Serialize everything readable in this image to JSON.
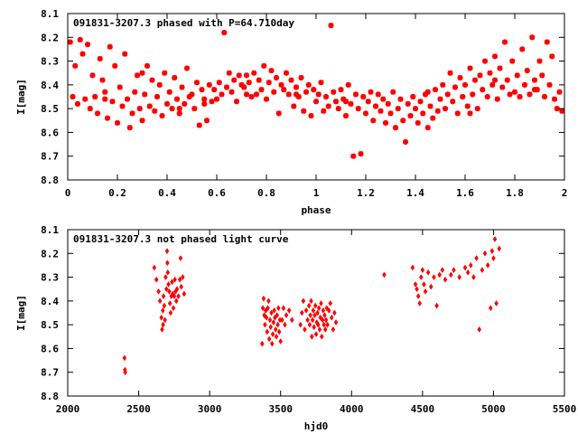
{
  "chart_data": [
    {
      "type": "scatter",
      "title": "091831-3207.3 phased with P=64.710day",
      "xlabel": "phase",
      "ylabel": "I[mag]",
      "xlim": [
        0,
        2
      ],
      "ylim": [
        8.8,
        8.1
      ],
      "y_inverted": true,
      "xticks": [
        "0",
        "0.2",
        "0.4",
        "0.6",
        "0.8",
        "1",
        "1.2",
        "1.4",
        "1.6",
        "1.8",
        "2"
      ],
      "yticks": [
        "8.1",
        "8.2",
        "8.3",
        "8.4",
        "8.5",
        "8.6",
        "8.7",
        "8.8"
      ],
      "marker": "star",
      "color": "#ff0000",
      "points": [
        [
          0.01,
          8.22
        ],
        [
          0.02,
          8.45
        ],
        [
          0.03,
          8.32
        ],
        [
          0.04,
          8.48
        ],
        [
          0.05,
          8.21
        ],
        [
          0.06,
          8.27
        ],
        [
          0.07,
          8.46
        ],
        [
          0.08,
          8.23
        ],
        [
          0.09,
          8.5
        ],
        [
          0.1,
          8.36
        ],
        [
          0.11,
          8.45
        ],
        [
          0.12,
          8.52
        ],
        [
          0.13,
          8.29
        ],
        [
          0.14,
          8.38
        ],
        [
          0.15,
          8.46
        ],
        [
          0.16,
          8.54
        ],
        [
          0.17,
          8.24
        ],
        [
          0.18,
          8.47
        ],
        [
          0.19,
          8.32
        ],
        [
          0.2,
          8.56
        ],
        [
          0.21,
          8.41
        ],
        [
          0.22,
          8.49
        ],
        [
          0.23,
          8.27
        ],
        [
          0.24,
          8.46
        ],
        [
          0.25,
          8.58
        ],
        [
          0.26,
          8.52
        ],
        [
          0.27,
          8.43
        ],
        [
          0.28,
          8.36
        ],
        [
          0.29,
          8.5
        ],
        [
          0.3,
          8.55
        ],
        [
          0.31,
          8.44
        ],
        [
          0.32,
          8.32
        ],
        [
          0.33,
          8.49
        ],
        [
          0.34,
          8.38
        ],
        [
          0.35,
          8.51
        ],
        [
          0.36,
          8.45
        ],
        [
          0.37,
          8.4
        ],
        [
          0.38,
          8.53
        ],
        [
          0.39,
          8.35
        ],
        [
          0.4,
          8.48
        ],
        [
          0.41,
          8.43
        ],
        [
          0.42,
          8.5
        ],
        [
          0.43,
          8.37
        ],
        [
          0.44,
          8.46
        ],
        [
          0.45,
          8.52
        ],
        [
          0.46,
          8.41
        ],
        [
          0.47,
          8.48
        ],
        [
          0.48,
          8.33
        ],
        [
          0.49,
          8.45
        ],
        [
          0.5,
          8.44
        ],
        [
          0.51,
          8.5
        ],
        [
          0.52,
          8.39
        ],
        [
          0.53,
          8.57
        ],
        [
          0.54,
          8.42
        ],
        [
          0.55,
          8.46
        ],
        [
          0.56,
          8.55
        ],
        [
          0.57,
          8.4
        ],
        [
          0.58,
          8.47
        ],
        [
          0.59,
          8.42
        ],
        [
          0.6,
          8.46
        ],
        [
          0.61,
          8.39
        ],
        [
          0.62,
          8.44
        ],
        [
          0.63,
          8.18
        ],
        [
          0.64,
          8.41
        ],
        [
          0.65,
          8.35
        ],
        [
          0.66,
          8.43
        ],
        [
          0.67,
          8.38
        ],
        [
          0.68,
          8.47
        ],
        [
          0.69,
          8.36
        ],
        [
          0.7,
          8.4
        ],
        [
          0.71,
          8.41
        ],
        [
          0.72,
          8.36
        ],
        [
          0.73,
          8.39
        ],
        [
          0.74,
          8.45
        ],
        [
          0.75,
          8.35
        ],
        [
          0.76,
          8.44
        ],
        [
          0.77,
          8.38
        ],
        [
          0.78,
          8.42
        ],
        [
          0.79,
          8.32
        ],
        [
          0.8,
          8.46
        ],
        [
          0.81,
          8.39
        ],
        [
          0.82,
          8.34
        ],
        [
          0.83,
          8.43
        ],
        [
          0.84,
          8.37
        ],
        [
          0.85,
          8.52
        ],
        [
          0.86,
          8.4
        ],
        [
          0.87,
          8.42
        ],
        [
          0.88,
          8.35
        ],
        [
          0.89,
          8.44
        ],
        [
          0.9,
          8.38
        ],
        [
          0.91,
          8.49
        ],
        [
          0.92,
          8.41
        ],
        [
          0.93,
          8.45
        ],
        [
          0.94,
          8.37
        ],
        [
          0.95,
          8.51
        ],
        [
          0.96,
          8.43
        ],
        [
          0.97,
          8.4
        ],
        [
          0.98,
          8.53
        ],
        [
          0.99,
          8.42
        ],
        [
          1.0,
          8.47
        ],
        [
          1.01,
          8.44
        ],
        [
          1.02,
          8.39
        ],
        [
          1.03,
          8.51
        ],
        [
          1.04,
          8.45
        ],
        [
          1.05,
          8.49
        ],
        [
          1.06,
          8.15
        ],
        [
          1.07,
          8.43
        ],
        [
          1.08,
          8.47
        ],
        [
          1.09,
          8.5
        ],
        [
          1.1,
          8.42
        ],
        [
          1.11,
          8.46
        ],
        [
          1.12,
          8.53
        ],
        [
          1.13,
          8.4
        ],
        [
          1.14,
          8.48
        ],
        [
          1.15,
          8.7
        ],
        [
          1.16,
          8.44
        ],
        [
          1.17,
          8.5
        ],
        [
          1.18,
          8.69
        ],
        [
          1.19,
          8.45
        ],
        [
          1.2,
          8.52
        ],
        [
          1.21,
          8.47
        ],
        [
          1.22,
          8.43
        ],
        [
          1.23,
          8.55
        ],
        [
          1.24,
          8.49
        ],
        [
          1.25,
          8.44
        ],
        [
          1.26,
          8.51
        ],
        [
          1.27,
          8.46
        ],
        [
          1.28,
          8.56
        ],
        [
          1.29,
          8.48
        ],
        [
          1.3,
          8.52
        ],
        [
          1.31,
          8.43
        ],
        [
          1.32,
          8.58
        ],
        [
          1.33,
          8.5
        ],
        [
          1.34,
          8.46
        ],
        [
          1.35,
          8.55
        ],
        [
          1.36,
          8.64
        ],
        [
          1.37,
          8.48
        ],
        [
          1.38,
          8.53
        ],
        [
          1.39,
          8.45
        ],
        [
          1.4,
          8.5
        ],
        [
          1.41,
          8.56
        ],
        [
          1.42,
          8.47
        ],
        [
          1.43,
          8.52
        ],
        [
          1.44,
          8.44
        ],
        [
          1.45,
          8.58
        ],
        [
          1.46,
          8.49
        ],
        [
          1.47,
          8.54
        ],
        [
          1.48,
          8.42
        ],
        [
          1.49,
          8.51
        ],
        [
          1.5,
          8.46
        ],
        [
          1.51,
          8.4
        ],
        [
          1.52,
          8.5
        ],
        [
          1.53,
          8.44
        ],
        [
          1.54,
          8.35
        ],
        [
          1.55,
          8.47
        ],
        [
          1.56,
          8.41
        ],
        [
          1.57,
          8.52
        ],
        [
          1.58,
          8.37
        ],
        [
          1.59,
          8.45
        ],
        [
          1.6,
          8.4
        ],
        [
          1.61,
          8.49
        ],
        [
          1.62,
          8.33
        ],
        [
          1.63,
          8.44
        ],
        [
          1.64,
          8.38
        ],
        [
          1.65,
          8.5
        ],
        [
          1.66,
          8.36
        ],
        [
          1.67,
          8.42
        ],
        [
          1.68,
          8.3
        ],
        [
          1.69,
          8.45
        ],
        [
          1.7,
          8.35
        ],
        [
          1.71,
          8.4
        ],
        [
          1.72,
          8.28
        ],
        [
          1.73,
          8.46
        ],
        [
          1.74,
          8.33
        ],
        [
          1.75,
          8.41
        ],
        [
          1.76,
          8.22
        ],
        [
          1.77,
          8.38
        ],
        [
          1.78,
          8.44
        ],
        [
          1.79,
          8.3
        ],
        [
          1.8,
          8.43
        ],
        [
          1.81,
          8.36
        ],
        [
          1.82,
          8.45
        ],
        [
          1.83,
          8.25
        ],
        [
          1.84,
          8.4
        ],
        [
          1.85,
          8.34
        ],
        [
          1.86,
          8.44
        ],
        [
          1.87,
          8.2
        ],
        [
          1.88,
          8.38
        ],
        [
          1.89,
          8.42
        ],
        [
          1.9,
          8.3
        ],
        [
          1.91,
          8.36
        ],
        [
          1.92,
          8.45
        ],
        [
          1.93,
          8.22
        ],
        [
          1.94,
          8.4
        ],
        [
          1.95,
          8.28
        ],
        [
          1.96,
          8.46
        ],
        [
          1.97,
          8.5
        ],
        [
          1.98,
          8.43
        ],
        [
          1.99,
          8.51
        ],
        [
          0.55,
          8.48
        ],
        [
          0.3,
          8.35
        ],
        [
          1.62,
          8.52
        ],
        [
          1.45,
          8.43
        ],
        [
          0.92,
          8.44
        ],
        [
          1.12,
          8.47
        ],
        [
          0.72,
          8.44
        ],
        [
          1.72,
          8.38
        ],
        [
          1.88,
          8.42
        ],
        [
          0.15,
          8.43
        ],
        [
          0.45,
          8.5
        ]
      ]
    },
    {
      "type": "scatter",
      "title": "091831-3207.3 not phased light curve",
      "xlabel": "hjd0",
      "ylabel": "I[mag]",
      "xlim": [
        2000,
        5500
      ],
      "ylim": [
        8.8,
        8.1
      ],
      "y_inverted": true,
      "xticks": [
        "2000",
        "2500",
        "3000",
        "3500",
        "4000",
        "4500",
        "5000",
        "5500"
      ],
      "yticks": [
        "8.1",
        "8.2",
        "8.3",
        "8.4",
        "8.5",
        "8.6",
        "8.7",
        "8.8"
      ],
      "marker": "diamond",
      "color": "#ff0000",
      "points": [
        [
          2400,
          8.64
        ],
        [
          2403,
          8.69
        ],
        [
          2405,
          8.7
        ],
        [
          2610,
          8.26
        ],
        [
          2625,
          8.31
        ],
        [
          2640,
          8.36
        ],
        [
          2650,
          8.4
        ],
        [
          2660,
          8.47
        ],
        [
          2665,
          8.52
        ],
        [
          2670,
          8.44
        ],
        [
          2672,
          8.5
        ],
        [
          2675,
          8.38
        ],
        [
          2680,
          8.42
        ],
        [
          2685,
          8.48
        ],
        [
          2690,
          8.3
        ],
        [
          2695,
          8.35
        ],
        [
          2700,
          8.19
        ],
        [
          2702,
          8.24
        ],
        [
          2705,
          8.28
        ],
        [
          2710,
          8.33
        ],
        [
          2715,
          8.36
        ],
        [
          2720,
          8.41
        ],
        [
          2725,
          8.45
        ],
        [
          2730,
          8.38
        ],
        [
          2735,
          8.32
        ],
        [
          2740,
          8.37
        ],
        [
          2745,
          8.43
        ],
        [
          2750,
          8.38
        ],
        [
          2755,
          8.31
        ],
        [
          2760,
          8.36
        ],
        [
          2765,
          8.4
        ],
        [
          2770,
          8.35
        ],
        [
          2780,
          8.38
        ],
        [
          2790,
          8.31
        ],
        [
          2795,
          8.22
        ],
        [
          2800,
          8.34
        ],
        [
          2810,
          8.3
        ],
        [
          2820,
          8.37
        ],
        [
          3370,
          8.58
        ],
        [
          3375,
          8.43
        ],
        [
          3380,
          8.39
        ],
        [
          3385,
          8.46
        ],
        [
          3390,
          8.5
        ],
        [
          3395,
          8.44
        ],
        [
          3400,
          8.47
        ],
        [
          3405,
          8.53
        ],
        [
          3410,
          8.43
        ],
        [
          3415,
          8.4
        ],
        [
          3420,
          8.56
        ],
        [
          3425,
          8.48
        ],
        [
          3430,
          8.51
        ],
        [
          3435,
          8.45
        ],
        [
          3440,
          8.58
        ],
        [
          3445,
          8.54
        ],
        [
          3450,
          8.49
        ],
        [
          3455,
          8.44
        ],
        [
          3460,
          8.47
        ],
        [
          3465,
          8.52
        ],
        [
          3470,
          8.55
        ],
        [
          3475,
          8.46
        ],
        [
          3480,
          8.5
        ],
        [
          3485,
          8.43
        ],
        [
          3490,
          8.53
        ],
        [
          3495,
          8.48
        ],
        [
          3500,
          8.57
        ],
        [
          3510,
          8.48
        ],
        [
          3520,
          8.43
        ],
        [
          3530,
          8.5
        ],
        [
          3540,
          8.46
        ],
        [
          3560,
          8.44
        ],
        [
          3580,
          8.48
        ],
        [
          3640,
          8.5
        ],
        [
          3650,
          8.45
        ],
        [
          3660,
          8.4
        ],
        [
          3670,
          8.52
        ],
        [
          3680,
          8.44
        ],
        [
          3690,
          8.48
        ],
        [
          3700,
          8.42
        ],
        [
          3705,
          8.5
        ],
        [
          3710,
          8.46
        ],
        [
          3715,
          8.4
        ],
        [
          3720,
          8.55
        ],
        [
          3725,
          8.48
        ],
        [
          3730,
          8.44
        ],
        [
          3735,
          8.51
        ],
        [
          3740,
          8.46
        ],
        [
          3745,
          8.42
        ],
        [
          3750,
          8.54
        ],
        [
          3755,
          8.49
        ],
        [
          3760,
          8.45
        ],
        [
          3765,
          8.5
        ],
        [
          3770,
          8.43
        ],
        [
          3775,
          8.52
        ],
        [
          3780,
          8.47
        ],
        [
          3785,
          8.41
        ],
        [
          3790,
          8.55
        ],
        [
          3795,
          8.48
        ],
        [
          3800,
          8.44
        ],
        [
          3805,
          8.5
        ],
        [
          3810,
          8.46
        ],
        [
          3815,
          8.52
        ],
        [
          3820,
          8.48
        ],
        [
          3825,
          8.43
        ],
        [
          3830,
          8.5
        ],
        [
          3840,
          8.44
        ],
        [
          3850,
          8.41
        ],
        [
          3860,
          8.47
        ],
        [
          3870,
          8.52
        ],
        [
          3880,
          8.45
        ],
        [
          3890,
          8.49
        ],
        [
          4230,
          8.29
        ],
        [
          4430,
          8.26
        ],
        [
          4450,
          8.33
        ],
        [
          4460,
          8.35
        ],
        [
          4470,
          8.38
        ],
        [
          4480,
          8.41
        ],
        [
          4490,
          8.3
        ],
        [
          4500,
          8.27
        ],
        [
          4510,
          8.33
        ],
        [
          4520,
          8.36
        ],
        [
          4540,
          8.28
        ],
        [
          4560,
          8.34
        ],
        [
          4580,
          8.3
        ],
        [
          4600,
          8.42
        ],
        [
          4620,
          8.29
        ],
        [
          4640,
          8.27
        ],
        [
          4660,
          8.31
        ],
        [
          4700,
          8.29
        ],
        [
          4720,
          8.27
        ],
        [
          4760,
          8.3
        ],
        [
          4800,
          8.26
        ],
        [
          4820,
          8.28
        ],
        [
          4840,
          8.25
        ],
        [
          4860,
          8.3
        ],
        [
          4880,
          8.22
        ],
        [
          4900,
          8.52
        ],
        [
          4920,
          8.27
        ],
        [
          4940,
          8.2
        ],
        [
          4960,
          8.25
        ],
        [
          4980,
          8.43
        ],
        [
          4990,
          8.19
        ],
        [
          5000,
          8.22
        ],
        [
          5010,
          8.14
        ],
        [
          5020,
          8.41
        ],
        [
          5040,
          8.18
        ]
      ]
    }
  ]
}
